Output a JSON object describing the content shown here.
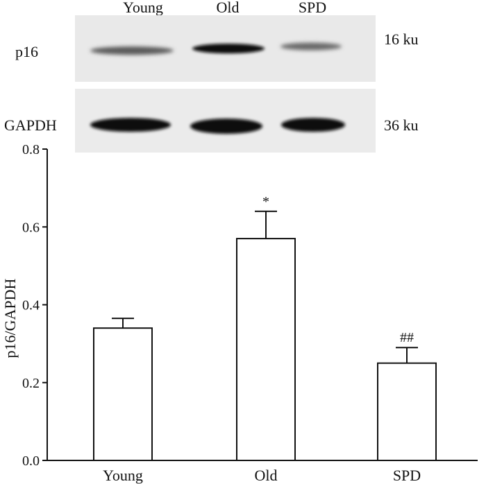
{
  "blot": {
    "lanes": [
      "Young",
      "Old",
      "SPD"
    ],
    "rows": [
      {
        "protein": "p16",
        "size": "16 ku",
        "intensity": [
          0.35,
          0.85,
          0.3
        ]
      },
      {
        "protein": "GAPDH",
        "size": "36 ku",
        "intensity": [
          0.95,
          0.97,
          0.95
        ]
      }
    ]
  },
  "chart_data": {
    "type": "bar",
    "categories": [
      "Young",
      "Old",
      "SPD"
    ],
    "values": [
      0.34,
      0.57,
      0.25
    ],
    "errors": [
      0.025,
      0.07,
      0.04
    ],
    "annotations": [
      "",
      "*",
      "##"
    ],
    "title": "",
    "xlabel": "",
    "ylabel": "p16/GAPDH",
    "ylim": [
      0,
      0.8
    ],
    "yticks": [
      0.0,
      0.2,
      0.4,
      0.6,
      0.8
    ],
    "ytick_labels": [
      "0.0",
      "0.2",
      "0.4",
      "0.6",
      "0.8"
    ],
    "grid": false,
    "bar_fill": "#ffffff",
    "bar_stroke": "#111111"
  }
}
